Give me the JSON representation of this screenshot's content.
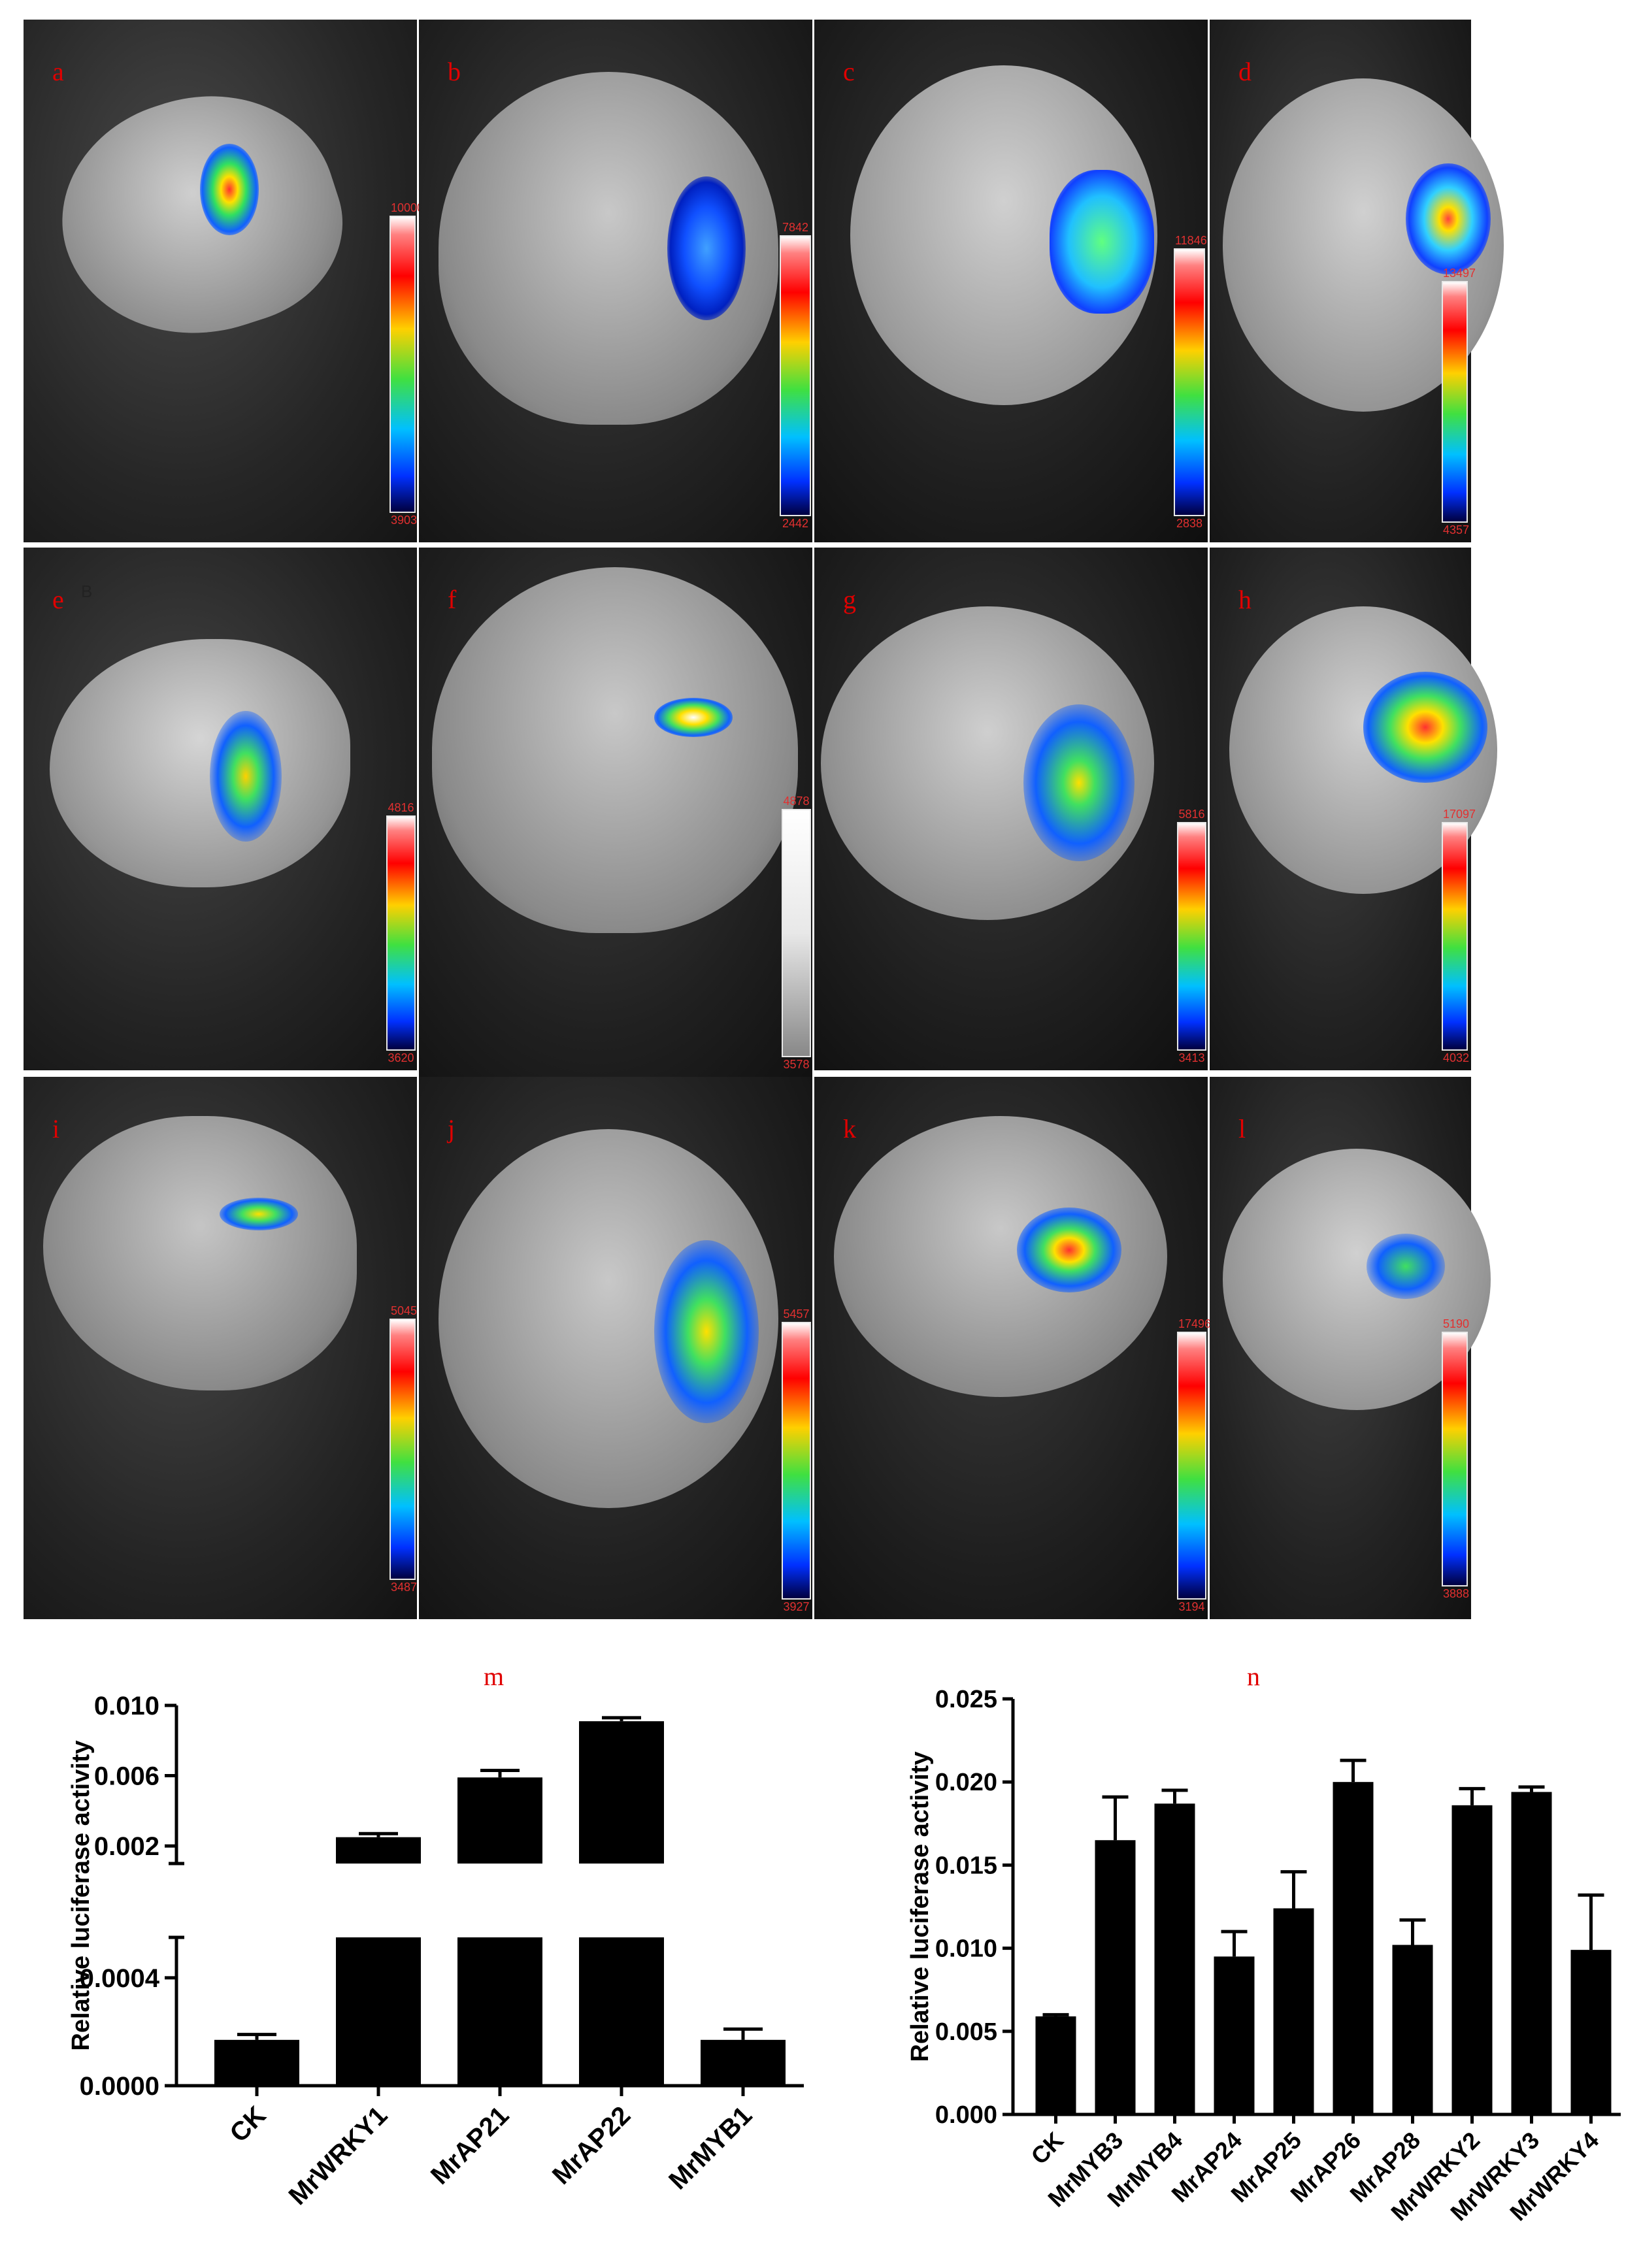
{
  "panels": [
    {
      "letter": "a",
      "cb_max": "10000",
      "cb_min": "3903"
    },
    {
      "letter": "b",
      "cb_max": "7842",
      "cb_min": "2442"
    },
    {
      "letter": "c",
      "cb_max": "11846",
      "cb_min": "2838"
    },
    {
      "letter": "d",
      "cb_max": "13497",
      "cb_min": "4357"
    },
    {
      "letter": "e",
      "cb_max": "4816",
      "cb_min": "3620",
      "extra": "B"
    },
    {
      "letter": "f",
      "cb_max": "4878",
      "cb_min": "3578"
    },
    {
      "letter": "g",
      "cb_max": "5816",
      "cb_min": "3413"
    },
    {
      "letter": "h",
      "cb_max": "17097",
      "cb_min": "4032"
    },
    {
      "letter": "i",
      "cb_max": "5045",
      "cb_min": "3487"
    },
    {
      "letter": "j",
      "cb_max": "5457",
      "cb_min": "3927"
    },
    {
      "letter": "k",
      "cb_max": "17496",
      "cb_min": "3194"
    },
    {
      "letter": "l",
      "cb_max": "5190",
      "cb_min": "3888"
    }
  ],
  "chart_data": [
    {
      "panel": "m",
      "type": "bar",
      "ylabel": "Relative luciferase activity",
      "categories": [
        "CK",
        "MrWRKY1",
        "MrAP21",
        "MrAP22",
        "MrMYB1"
      ],
      "values": [
        0.00017,
        0.0025,
        0.0059,
        0.0091,
        0.00017
      ],
      "errors": [
        2e-05,
        0.0002,
        0.0004,
        0.0002,
        4e-05
      ],
      "broken_axis": {
        "lower_range": [
          0,
          0.00055
        ],
        "upper_range": [
          0.001,
          0.01
        ]
      },
      "lower_ticks": [
        "0.0000",
        "0.0004"
      ],
      "upper_ticks": [
        "0.002",
        "0.006",
        "0.010"
      ]
    },
    {
      "panel": "n",
      "type": "bar",
      "ylabel": "Relative luciferase activity",
      "categories": [
        "CK",
        "MrMYB3",
        "MrMYB4",
        "MrAP24",
        "MrAP25",
        "MrAP26",
        "MrAP28",
        "MrWRKY2",
        "MrWRKY3",
        "MrWRKY4"
      ],
      "values": [
        0.0059,
        0.0165,
        0.0187,
        0.0095,
        0.0124,
        0.02,
        0.0102,
        0.0186,
        0.0194,
        0.0099
      ],
      "errors": [
        0.0001,
        0.0026,
        0.0008,
        0.0015,
        0.0022,
        0.0013,
        0.0015,
        0.001,
        0.0003,
        0.0033
      ],
      "ylim": [
        0,
        0.025
      ],
      "yticks": [
        "0.000",
        "0.005",
        "0.010",
        "0.015",
        "0.020",
        "0.025"
      ]
    }
  ]
}
